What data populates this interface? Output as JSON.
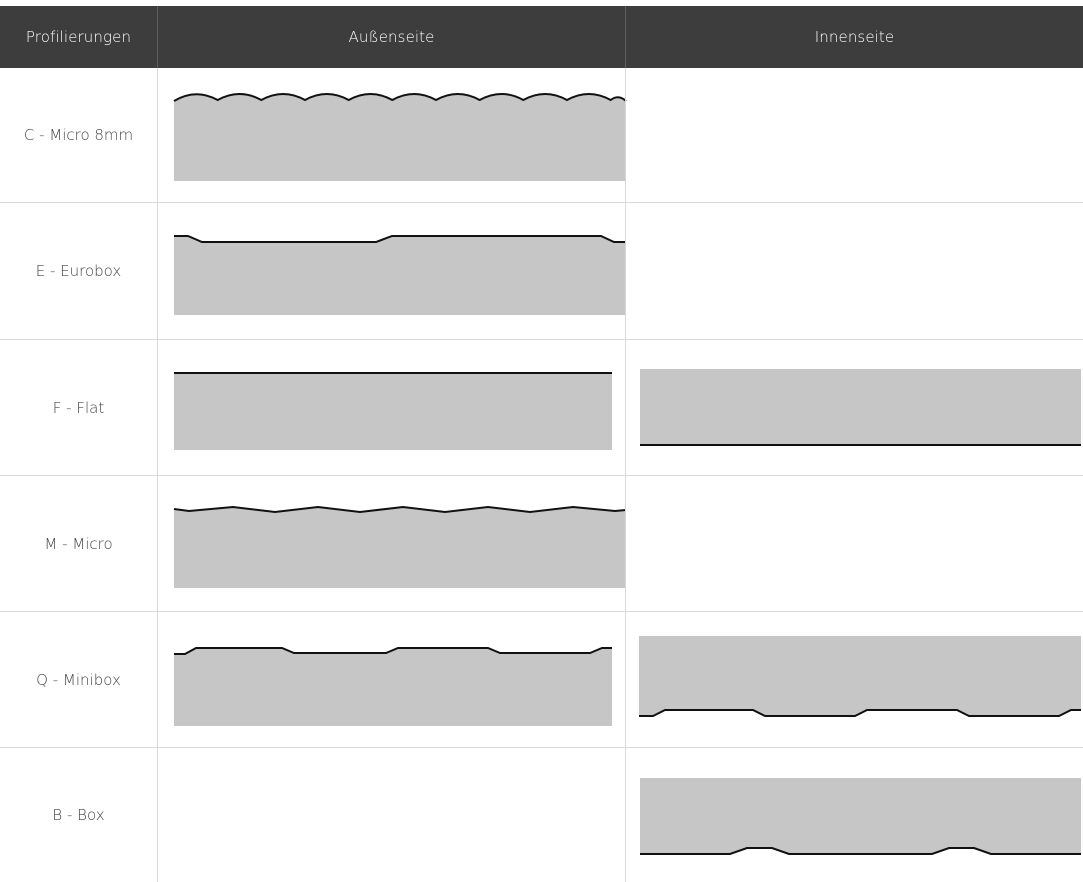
{
  "header": {
    "profile_col": "Profilierungen",
    "outside_col": "Außenseite",
    "inside_col": "Innenseite"
  },
  "rows": [
    {
      "label": "C - Micro 8mm",
      "outside_profile": "wave-icon",
      "inside_profile": ""
    },
    {
      "label": "E - Eurobox",
      "outside_profile": "eurobox-icon",
      "inside_profile": ""
    },
    {
      "label": "F - Flat",
      "outside_profile": "flat-icon",
      "inside_profile": "flat-icon"
    },
    {
      "label": "M - Micro",
      "outside_profile": "micro-icon",
      "inside_profile": ""
    },
    {
      "label": "Q - Minibox",
      "outside_profile": "minibox-icon",
      "inside_profile": "minibox-icon"
    },
    {
      "label": "B - Box",
      "outside_profile": "",
      "inside_profile": "box-icon"
    }
  ],
  "colors": {
    "header_bg": "#3d3d3d",
    "profile_fill": "#c6c6c6",
    "profile_edge": "#111111",
    "divider": "#d9d9d9"
  }
}
